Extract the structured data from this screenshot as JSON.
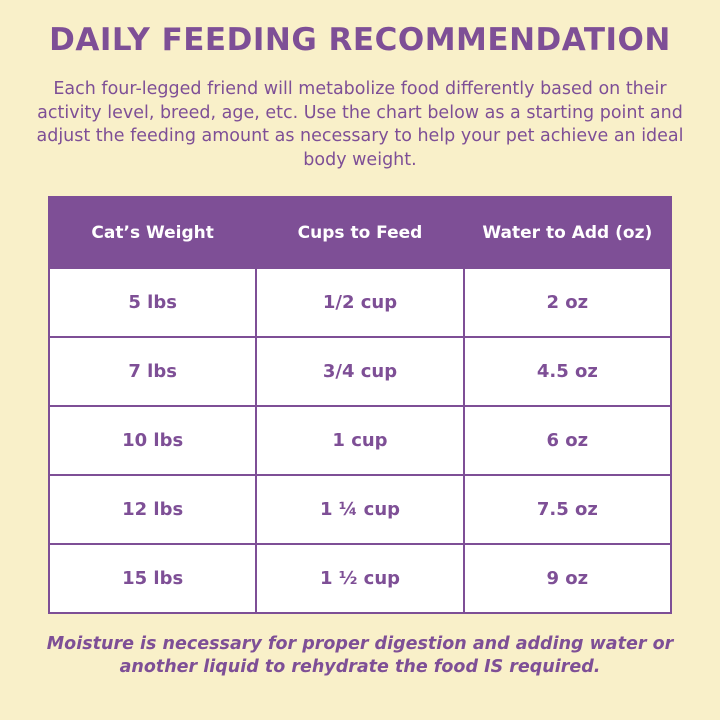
{
  "title": "DAILY FEEDING RECOMMENDATION",
  "intro": "Each four-legged friend will metabolize food differently based on their activity level, breed, age, etc. Use the chart below as a starting point and adjust the feeding amount as necessary to help your pet achieve an ideal body weight.",
  "table": {
    "headers": [
      "Cat’s Weight",
      "Cups to Feed",
      "Water to Add (oz)"
    ],
    "rows": [
      [
        "5 lbs",
        "1/2 cup",
        "2 oz"
      ],
      [
        "7 lbs",
        "3/4 cup",
        "4.5 oz"
      ],
      [
        "10 lbs",
        "1 cup",
        "6 oz"
      ],
      [
        "12 lbs",
        "1 ¼ cup",
        "7.5 oz"
      ],
      [
        "15 lbs",
        "1 ½ cup",
        "9 oz"
      ]
    ]
  },
  "footer": "Moisture is necessary for proper digestion and adding water or another liquid to rehydrate the food IS required.",
  "colors": {
    "background": "#f9f0c9",
    "accent": "#7e4f96",
    "cell_background": "#ffffff"
  }
}
